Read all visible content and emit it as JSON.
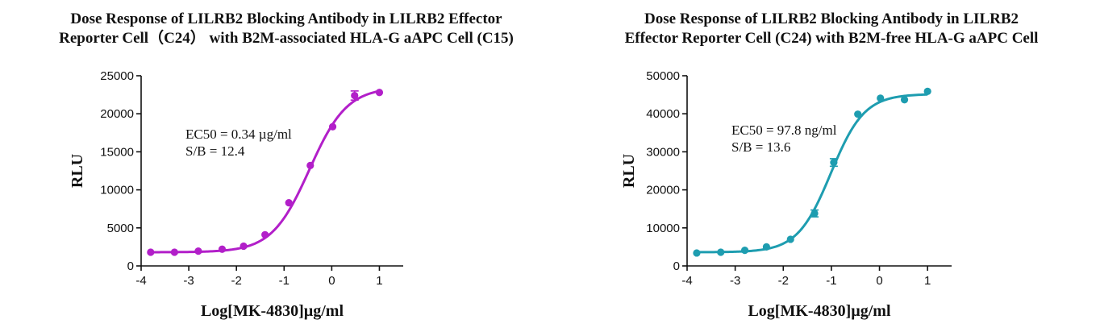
{
  "chart_data": [
    {
      "type": "scatter",
      "title_lines": [
        "Dose Response of LILRB2 Blocking Antibody in LILRB2 Effector",
        "Reporter Cell（C24） with B2M-associated HLA-G aAPC Cell (C15)"
      ],
      "xlabel": "Log[MK-4830]µg/ml",
      "ylabel": "RLU",
      "xlim": [
        -4,
        1.5
      ],
      "ylim": [
        0,
        25000
      ],
      "xticks": [
        "-4",
        "-3",
        "-2",
        "-1",
        "0",
        "1"
      ],
      "yticks": [
        "0",
        "5000",
        "10000",
        "15000",
        "20000",
        "25000"
      ],
      "color": "#b21fc9",
      "annotations": [
        "EC50 = 0.34 µg/ml",
        "S/B = 12.4"
      ],
      "series": [
        {
          "x": [
            -3.8,
            -3.3,
            -2.8,
            -2.3,
            -1.85,
            -1.4,
            -0.9,
            -0.45,
            0.02,
            0.48,
            1.0
          ],
          "y": [
            1800,
            1800,
            1950,
            2200,
            2600,
            4100,
            8300,
            13200,
            18300,
            22400,
            22800
          ],
          "error": [
            0,
            0,
            0,
            0,
            0,
            0,
            0,
            0,
            0,
            600,
            0
          ]
        }
      ],
      "fit": {
        "bottom": 1800,
        "top": 23500,
        "log_ec50": -0.47,
        "hill": 1.1
      },
      "legend": "none",
      "grid": false
    },
    {
      "type": "scatter",
      "title_lines": [
        "Dose Response of LILRB2 Blocking Antibody in LILRB2",
        "Effector Reporter Cell (C24) with B2M-free HLA-G aAPC Cell"
      ],
      "xlabel": "Log[MK-4830]µg/ml",
      "ylabel": "RLU",
      "xlim": [
        -4,
        1.5
      ],
      "ylim": [
        0,
        50000
      ],
      "xticks": [
        "-4",
        "-3",
        "-2",
        "-1",
        "0",
        "1"
      ],
      "yticks": [
        "0",
        "10000",
        "20000",
        "30000",
        "40000",
        "50000"
      ],
      "color": "#1e9db0",
      "annotations": [
        "EC50 = 97.8 ng/ml",
        "S/B = 13.6"
      ],
      "series": [
        {
          "x": [
            -3.8,
            -3.3,
            -2.8,
            -2.35,
            -1.85,
            -1.35,
            -0.95,
            -0.45,
            0.02,
            0.52,
            1.0
          ],
          "y": [
            3400,
            3600,
            4100,
            5000,
            7000,
            13800,
            27200,
            39900,
            44100,
            43700,
            45900
          ],
          "error": [
            0,
            0,
            0,
            0,
            0,
            900,
            1000,
            0,
            0,
            0,
            0
          ]
        }
      ],
      "fit": {
        "bottom": 3600,
        "top": 45200,
        "log_ec50": -1.01,
        "hill": 1.25
      },
      "legend": "none",
      "grid": false
    }
  ]
}
